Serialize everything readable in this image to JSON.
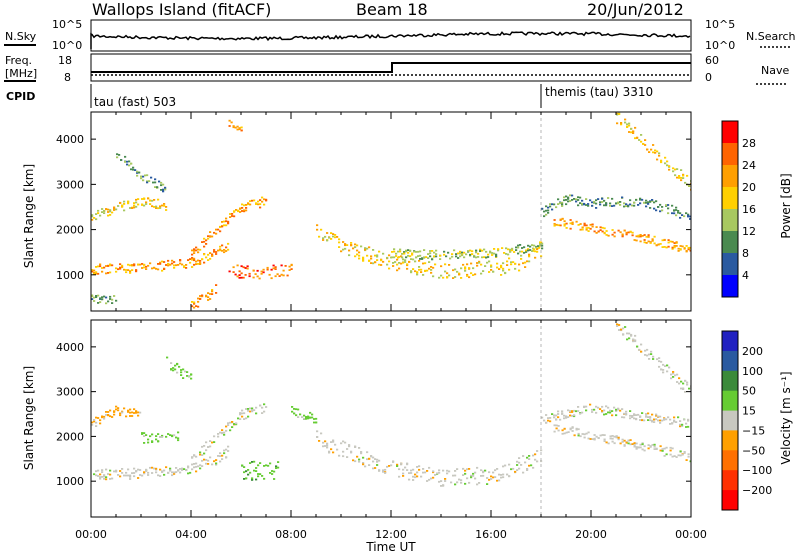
{
  "header": {
    "station": "Wallops Island (fitACF)",
    "beam": "Beam 18",
    "date": "20/Jun/2012"
  },
  "panels": {
    "nsky": {
      "left_label": "N.Sky",
      "right_label": "N.Search",
      "ticks": [
        "10^5",
        "10^0"
      ],
      "right_ticks": [
        "10^5",
        "10^0"
      ]
    },
    "freq": {
      "label_line1": "Freq.",
      "label_line2": "[MHz]",
      "ticks": [
        "18",
        "8"
      ],
      "right_label": "Nave",
      "right_ticks": [
        "60",
        "0"
      ]
    },
    "cpid": {
      "label": "CPID",
      "segments": [
        {
          "text": "tau (fast) 503",
          "start_h": 0
        },
        {
          "text": "themis (tau) 3310",
          "start_h": 18
        }
      ]
    }
  },
  "chart_data": [
    {
      "type": "heatmap",
      "title": "",
      "ylabel": "Slant Range [km]",
      "xlabel": "",
      "xlim": [
        0,
        24
      ],
      "ylim": [
        200,
        4600
      ],
      "y_ticks": [
        1000,
        2000,
        3000,
        4000
      ],
      "x_tick_labels": [
        "00:00",
        "04:00",
        "08:00",
        "12:00",
        "16:00",
        "20:00",
        "00:00"
      ],
      "colorbar": {
        "label": "Power [dB]",
        "ticks": [
          "28",
          "24",
          "20",
          "16",
          "12",
          "8",
          "4"
        ],
        "colors": [
          "#ff0000",
          "#ff6400",
          "#ff9f00",
          "#ffd000",
          "#a8c860",
          "#4a8a50",
          "#2a5aa0",
          "#0000ff"
        ]
      },
      "bands": [
        {
          "h": [
            0.0,
            1.0,
            2.0,
            3.0,
            4.0,
            5.0,
            5.5
          ],
          "km": [
            1150,
            1150,
            1180,
            1220,
            1300,
            1500,
            1700
          ],
          "width_km": 220,
          "level": 20
        },
        {
          "h": [
            0.0,
            1.0,
            2.0,
            3.0
          ],
          "km": [
            2300,
            2500,
            2650,
            2550
          ],
          "width_km": 200,
          "level": 16
        },
        {
          "h": [
            4.0,
            5.0,
            6.0,
            7.0
          ],
          "km": [
            1500,
            2000,
            2500,
            2650
          ],
          "width_km": 220,
          "level": 20
        },
        {
          "h": [
            5.5,
            6.5,
            7.5,
            8.0
          ],
          "km": [
            1100,
            1050,
            1100,
            1150
          ],
          "width_km": 300,
          "level": 24
        },
        {
          "h": [
            9.0,
            10.0,
            12.0,
            14.0,
            16.0,
            17.0,
            18.0
          ],
          "km": [
            1950,
            1650,
            1300,
            1100,
            1150,
            1250,
            1600
          ],
          "width_km": 350,
          "level": 16
        },
        {
          "h": [
            12.0,
            14.0,
            16.0,
            18.0
          ],
          "km": [
            1500,
            1450,
            1500,
            1650
          ],
          "width_km": 200,
          "level": 12
        },
        {
          "h": [
            18.5,
            20.0,
            22.0,
            23.0,
            24.0
          ],
          "km": [
            2200,
            2050,
            1850,
            1700,
            1550
          ],
          "width_km": 200,
          "level": 20
        },
        {
          "h": [
            18.0,
            19.0,
            20.0,
            22.0,
            24.0
          ],
          "km": [
            2400,
            2700,
            2600,
            2650,
            2300
          ],
          "width_km": 220,
          "level": 8
        },
        {
          "h": [
            21.0,
            22.0,
            23.0,
            24.0
          ],
          "km": [
            4500,
            4000,
            3500,
            3000
          ],
          "width_km": 260,
          "level": 16
        },
        {
          "h": [
            0.0,
            1.0
          ],
          "km": [
            500,
            450
          ],
          "width_km": 200,
          "level": 8
        },
        {
          "h": [
            4.0,
            5.0
          ],
          "km": [
            350,
            700
          ],
          "width_km": 250,
          "level": 20
        },
        {
          "h": [
            5.5,
            6.0
          ],
          "km": [
            4400,
            4200
          ],
          "width_km": 200,
          "level": 20
        },
        {
          "h": [
            1.0,
            2.0,
            3.0
          ],
          "km": [
            3700,
            3200,
            2900
          ],
          "width_km": 180,
          "level": 8
        }
      ]
    },
    {
      "type": "heatmap",
      "title": "",
      "ylabel": "Slant Range [km]",
      "xlabel": "Time UT",
      "xlim": [
        0,
        24
      ],
      "ylim": [
        200,
        4600
      ],
      "y_ticks": [
        1000,
        2000,
        3000,
        4000
      ],
      "x_tick_labels": [
        "00:00",
        "04:00",
        "08:00",
        "12:00",
        "16:00",
        "20:00",
        "00:00"
      ],
      "colorbar": {
        "label": "Velocity [m s⁻¹]",
        "ticks": [
          "200",
          "100",
          "50",
          "15",
          "−15",
          "−50",
          "−100",
          "−200"
        ],
        "colors": [
          "#2020c0",
          "#2a5aa0",
          "#3a8a3a",
          "#66cc33",
          "#c8c8c0",
          "#ffa000",
          "#ff7000",
          "#ff3000",
          "#ff0000"
        ]
      },
      "bands": [
        {
          "h": [
            0.0,
            2.0,
            4.0,
            5.0,
            5.5
          ],
          "km": [
            1150,
            1200,
            1300,
            1500,
            1700
          ],
          "width_km": 240,
          "vel": 0
        },
        {
          "h": [
            4.0,
            5.0,
            6.0,
            7.0
          ],
          "km": [
            1500,
            2000,
            2500,
            2650
          ],
          "width_km": 220,
          "vel": 0
        },
        {
          "h": [
            6.0,
            7.5
          ],
          "km": [
            1250,
            1250
          ],
          "width_km": 450,
          "vel": 40
        },
        {
          "h": [
            9.0,
            12.0,
            14.0,
            16.0,
            18.0
          ],
          "km": [
            1950,
            1300,
            1100,
            1150,
            1550
          ],
          "width_km": 380,
          "vel": 0
        },
        {
          "h": [
            18.5,
            20.0,
            22.0,
            24.0
          ],
          "km": [
            2200,
            2050,
            1800,
            1550
          ],
          "width_km": 220,
          "vel": 0
        },
        {
          "h": [
            18.0,
            20.0,
            24.0
          ],
          "km": [
            2400,
            2650,
            2300
          ],
          "width_km": 200,
          "vel": 0
        },
        {
          "h": [
            21.0,
            22.0,
            23.0,
            24.0
          ],
          "km": [
            4500,
            4000,
            3500,
            3000
          ],
          "width_km": 260,
          "vel": 0
        },
        {
          "h": [
            0.0,
            1.0,
            2.0
          ],
          "km": [
            2300,
            2600,
            2500
          ],
          "width_km": 200,
          "vel": -30
        },
        {
          "h": [
            2.0,
            3.5
          ],
          "km": [
            2000,
            2000
          ],
          "width_km": 250,
          "vel": 30
        },
        {
          "h": [
            3.0,
            4.0
          ],
          "km": [
            3700,
            3300
          ],
          "width_km": 250,
          "vel": 30
        },
        {
          "h": [
            8.0,
            9.0
          ],
          "km": [
            2600,
            2400
          ],
          "width_km": 200,
          "vel": 30
        }
      ]
    }
  ]
}
